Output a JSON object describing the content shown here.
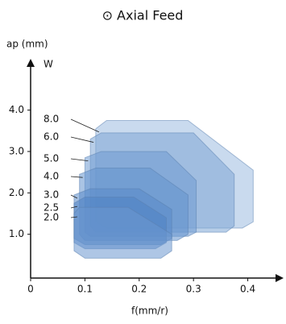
{
  "chart_data": {
    "type": "region",
    "title": "⊙ Axial Feed",
    "y_label": "ap (mm)",
    "x_label": "f(mm/r)",
    "series_label": "W",
    "xlim": [
      0,
      0.46
    ],
    "xticks": [
      0,
      0.1,
      0.2,
      0.3,
      0.4
    ],
    "ylim": [
      0,
      5.2
    ],
    "yticks": [
      {
        "value": 1,
        "label": "1.0"
      },
      {
        "value": 2,
        "label": "2.0"
      },
      {
        "value": 3,
        "label": "3.0"
      },
      {
        "value": 4,
        "label": "4.0"
      }
    ],
    "series": [
      {
        "name": "8.0",
        "color": "#9dbbe0",
        "x": [
          0.14,
          0.29,
          0.41,
          0.41,
          0.39,
          0.14,
          0.12,
          0.12
        ],
        "values": [
          3.75,
          3.75,
          2.55,
          1.3,
          1.15,
          1.15,
          1.3,
          3.55
        ]
      },
      {
        "name": "6.0",
        "color": "#7ea5d6",
        "x": [
          0.13,
          0.3,
          0.375,
          0.375,
          0.36,
          0.12,
          0.11,
          0.11
        ],
        "values": [
          3.45,
          3.45,
          2.45,
          1.2,
          1.05,
          1.05,
          1.2,
          3.3
        ]
      },
      {
        "name": "5.0",
        "color": "#6f9bd1",
        "x": [
          0.13,
          0.25,
          0.305,
          0.305,
          0.29,
          0.11,
          0.1,
          0.1
        ],
        "values": [
          3.0,
          3.0,
          2.3,
          1.05,
          0.95,
          0.95,
          1.05,
          2.85
        ]
      },
      {
        "name": "4.0",
        "color": "#6593cd",
        "x": [
          0.12,
          0.22,
          0.29,
          0.29,
          0.27,
          0.1,
          0.09,
          0.09
        ],
        "values": [
          2.6,
          2.6,
          1.95,
          1.0,
          0.85,
          0.85,
          1.0,
          2.45
        ]
      },
      {
        "name": "3.0",
        "color": "#5a8ac8",
        "x": [
          0.11,
          0.2,
          0.26,
          0.26,
          0.24,
          0.1,
          0.08,
          0.08
        ],
        "values": [
          2.1,
          2.1,
          1.6,
          0.9,
          0.75,
          0.75,
          0.9,
          1.95
        ]
      },
      {
        "name": "2.5",
        "color": "#5083c4",
        "x": [
          0.1,
          0.19,
          0.25,
          0.25,
          0.23,
          0.1,
          0.08,
          0.08
        ],
        "values": [
          1.9,
          1.9,
          1.4,
          0.8,
          0.65,
          0.65,
          0.8,
          1.75
        ]
      },
      {
        "name": "2.0",
        "color": "#6b98cf",
        "x": [
          0.09,
          0.18,
          0.26,
          0.26,
          0.24,
          0.1,
          0.08,
          0.08
        ],
        "values": [
          1.65,
          1.65,
          1.0,
          0.6,
          0.42,
          0.42,
          0.6,
          1.5
        ]
      }
    ]
  }
}
